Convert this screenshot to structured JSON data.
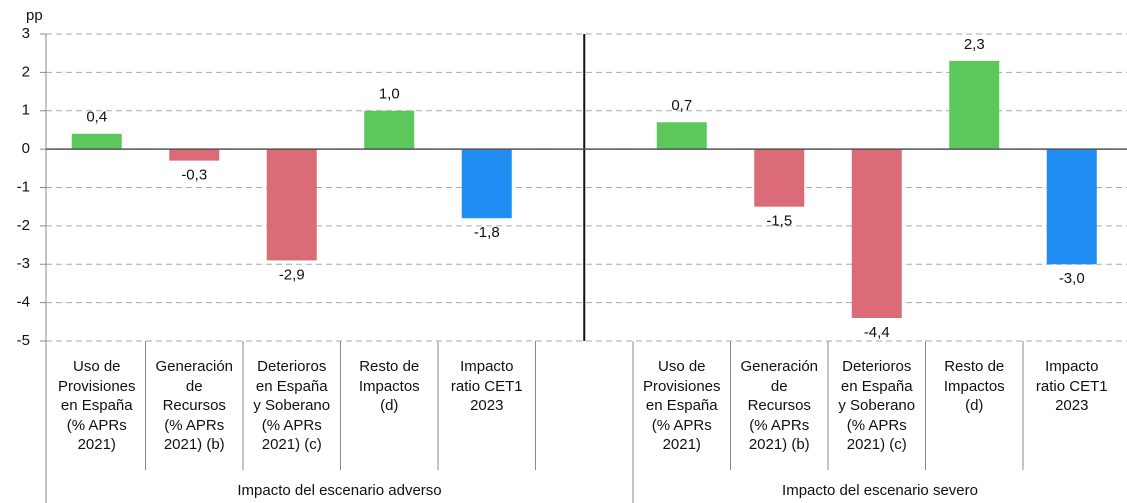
{
  "chart_data": {
    "type": "bar",
    "y_label": "pp",
    "categories": [
      "Uso de\nProvisiones\nen España\n(% APRs\n2021)",
      "Generación\nde\nRecursos\n(% APRs\n2021) (b)",
      "Deterioros\nen España\ny Soberano\n(% APRs\n2021) (c)",
      "Resto de\nImpactos\n(d)",
      "Impacto\nratio CET1\n2023",
      null,
      "Uso de\nProvisiones\nen España\n(% APRs\n2021)",
      "Generación\nde\nRecursos\n(% APRs\n2021) (b)",
      "Deterioros\nen España\ny Soberano\n(% APRs\n2021) (c)",
      "Resto de\nImpactos\n(d)",
      "Impacto\nratio CET1\n2023"
    ],
    "values": [
      0.4,
      -0.3,
      -2.9,
      1.0,
      -1.8,
      null,
      0.7,
      -1.5,
      -4.4,
      2.3,
      -3.0
    ],
    "value_labels": [
      "0,4",
      "-0,3",
      "-2,9",
      "1,0",
      "-1,8",
      null,
      "0,7",
      "-1,5",
      "-4,4",
      "2,3",
      "-3,0"
    ],
    "colors": [
      "#5cc85c",
      "#dc6b78",
      "#dc6b78",
      "#5cc85c",
      "#1e8cf0",
      null,
      "#5cc85c",
      "#dc6b78",
      "#dc6b78",
      "#5cc85c",
      "#1e8cf0"
    ],
    "groups": [
      "Impacto del escenario adverso",
      "Impacto del escenario severo"
    ],
    "ylim": [
      -5,
      3
    ],
    "yticks": [
      3,
      2,
      1,
      0,
      -1,
      -2,
      -3,
      -4,
      -5
    ],
    "grid": true
  }
}
